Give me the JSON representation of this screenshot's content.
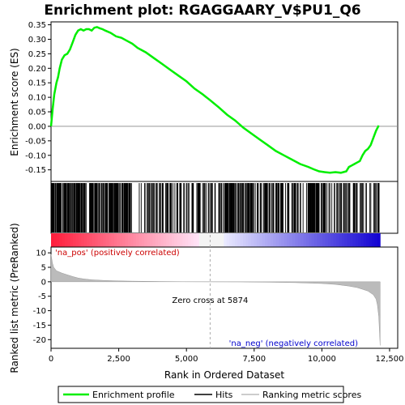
{
  "chart_data": {
    "type": "line",
    "title": "Enrichment plot: RGAGGAARY_V$PU1_Q6",
    "top_panel": {
      "ylabel": "Enrichment score (ES)",
      "ylim": [
        -0.19,
        0.36
      ],
      "yticks": [
        "0.35",
        "0.30",
        "0.25",
        "0.20",
        "0.15",
        "0.10",
        "0.05",
        "0.00",
        "-0.05",
        "-0.10",
        "-0.15"
      ],
      "ytick_values": [
        0.35,
        0.3,
        0.25,
        0.2,
        0.15,
        0.1,
        0.05,
        0.0,
        -0.05,
        -0.1,
        -0.15
      ],
      "series": [
        {
          "name": "Enrichment profile",
          "color": "#00ee00",
          "x": [
            0,
            60,
            120,
            200,
            260,
            320,
            400,
            500,
            600,
            700,
            800,
            900,
            1000,
            1100,
            1200,
            1300,
            1400,
            1500,
            1600,
            1700,
            1800,
            1900,
            2000,
            2200,
            2400,
            2600,
            2800,
            3000,
            3200,
            3500,
            3800,
            4100,
            4400,
            4700,
            5000,
            5300,
            5600,
            5874,
            6200,
            6500,
            6800,
            7100,
            7400,
            7700,
            8000,
            8300,
            8600,
            8900,
            9200,
            9500,
            9700,
            9900,
            10100,
            10300,
            10500,
            10700,
            10900,
            11000,
            11100,
            11200,
            11300,
            11400,
            11500,
            11600,
            11700,
            11800,
            11900,
            12000,
            12100
          ],
          "y": [
            0.0,
            0.06,
            0.11,
            0.15,
            0.17,
            0.2,
            0.23,
            0.245,
            0.25,
            0.265,
            0.29,
            0.315,
            0.33,
            0.335,
            0.33,
            0.335,
            0.335,
            0.33,
            0.34,
            0.342,
            0.338,
            0.335,
            0.33,
            0.322,
            0.31,
            0.305,
            0.295,
            0.285,
            0.27,
            0.255,
            0.235,
            0.215,
            0.195,
            0.175,
            0.155,
            0.13,
            0.11,
            0.09,
            0.065,
            0.04,
            0.02,
            -0.005,
            -0.025,
            -0.045,
            -0.065,
            -0.085,
            -0.1,
            -0.115,
            -0.13,
            -0.14,
            -0.148,
            -0.155,
            -0.158,
            -0.16,
            -0.158,
            -0.16,
            -0.155,
            -0.14,
            -0.135,
            -0.13,
            -0.125,
            -0.12,
            -0.1,
            -0.085,
            -0.078,
            -0.065,
            -0.04,
            -0.015,
            0.003
          ]
        }
      ]
    },
    "hits_panel": {
      "label": "Hits",
      "description_lines": []
    },
    "bottom_panel": {
      "ylabel": "Ranked list metric (PreRanked)",
      "ylim": [
        -23,
        12
      ],
      "yticks": [
        "10",
        "5",
        "0",
        "-5",
        "-10",
        "-15",
        "-20"
      ],
      "ytick_values": [
        10,
        5,
        0,
        -5,
        -10,
        -15,
        -20
      ],
      "metric_x": [
        0,
        50,
        100,
        200,
        400,
        600,
        800,
        1000,
        1200,
        1500,
        2000,
        2500,
        3000,
        4000,
        5000,
        5874,
        7000,
        8000,
        9000,
        10000,
        10500,
        11000,
        11300,
        11500,
        11700,
        11900,
        12000,
        12050,
        12100,
        12150
      ],
      "metric_y": [
        9.5,
        6.5,
        5.0,
        3.8,
        3.0,
        2.4,
        1.8,
        1.3,
        1.0,
        0.7,
        0.45,
        0.3,
        0.2,
        0.1,
        0.03,
        0.0,
        -0.05,
        -0.15,
        -0.3,
        -0.6,
        -0.9,
        -1.5,
        -2.0,
        -2.6,
        -3.2,
        -4.5,
        -6.0,
        -8.0,
        -12.0,
        -22.0
      ],
      "pos_label": "'na_pos' (positively correlated)",
      "neg_label": "'na_neg' (negatively correlated)",
      "zero_cross_label": "Zero cross at 5874",
      "zero_cross": 5874
    },
    "x_axis": {
      "label": "Rank in Ordered Dataset",
      "xlim": [
        0,
        12800
      ],
      "ticks": [
        "0",
        "2,500",
        "5,000",
        "7,500",
        "10,000",
        "12,500"
      ],
      "tick_values": [
        0,
        2500,
        5000,
        7500,
        10000,
        12500
      ]
    },
    "legend": {
      "placement": "bottom",
      "entries": [
        {
          "name": "Enrichment profile",
          "color": "#00ee00"
        },
        {
          "name": "Hits",
          "color": "#000000"
        },
        {
          "name": "Ranking metric scores",
          "color": "#bbbbbb"
        }
      ]
    },
    "colors": {
      "profile": "#00ee00",
      "metric_fill": "#bbbbbb",
      "pos_text": "#cc0000",
      "neg_text": "#0000cc"
    }
  }
}
